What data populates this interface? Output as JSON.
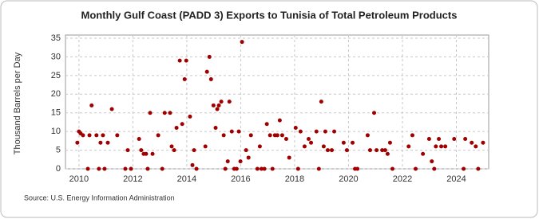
{
  "chart_data": {
    "type": "scatter",
    "title": "Monthly Gulf Coast (PADD 3) Exports to Tunisia of Total Petroleum Products",
    "y_label": "Thousand Barrels per Day",
    "source": "Source: U.S. Energy Information Administration",
    "color": "#a00000",
    "grid": true,
    "xlim": [
      2009.5,
      2025.2
    ],
    "xticks": [
      2010,
      2012,
      2014,
      2016,
      2018,
      2020,
      2022,
      2024
    ],
    "ylim": [
      0,
      35
    ],
    "yticks": [
      0,
      5,
      10,
      15,
      20,
      25,
      30,
      35
    ],
    "x": [
      2009.94,
      2010.0,
      2010.06,
      2010.15,
      2010.33,
      2010.39,
      2010.47,
      2010.65,
      2010.74,
      2010.8,
      2010.89,
      2010.95,
      2011.07,
      2011.22,
      2011.42,
      2011.72,
      2011.81,
      2011.93,
      2012.23,
      2012.31,
      2012.4,
      2012.49,
      2012.55,
      2012.64,
      2012.73,
      2012.94,
      2013.09,
      2013.18,
      2013.38,
      2013.44,
      2013.53,
      2013.62,
      2013.74,
      2013.83,
      2013.92,
      2013.98,
      2014.12,
      2014.21,
      2014.27,
      2014.36,
      2014.69,
      2014.75,
      2014.84,
      2014.9,
      2014.99,
      2015.07,
      2015.13,
      2015.19,
      2015.28,
      2015.37,
      2015.43,
      2015.52,
      2015.58,
      2015.67,
      2015.76,
      2015.85,
      2015.93,
      2015.99,
      2016.05,
      2016.2,
      2016.29,
      2016.38,
      2016.62,
      2016.71,
      2016.77,
      2016.88,
      2016.97,
      2017.09,
      2017.18,
      2017.27,
      2017.36,
      2017.45,
      2017.54,
      2017.69,
      2017.8,
      2018.04,
      2018.13,
      2018.22,
      2018.37,
      2018.52,
      2018.61,
      2018.81,
      2018.9,
      2018.99,
      2019.08,
      2019.14,
      2019.23,
      2019.38,
      2019.47,
      2019.82,
      2019.94,
      2020.15,
      2020.24,
      2020.33,
      2020.71,
      2020.8,
      2020.95,
      2021.04,
      2021.25,
      2021.36,
      2021.45,
      2021.54,
      2021.63,
      2022.23,
      2022.37,
      2022.49,
      2022.76,
      2022.99,
      2023.09,
      2023.18,
      2023.24,
      2023.35,
      2023.44,
      2023.59,
      2023.92,
      2024.27,
      2024.33,
      2024.57,
      2024.72,
      2024.81,
      2024.99
    ],
    "values": [
      7,
      10,
      9.5,
      9,
      0,
      9,
      17,
      9,
      0,
      7,
      9,
      0,
      7,
      16,
      9,
      0,
      5,
      0,
      8,
      5,
      4,
      4,
      0,
      15,
      4,
      9,
      0,
      15,
      15,
      6,
      5,
      11,
      29,
      12,
      24,
      29,
      14,
      1,
      5,
      0,
      6,
      26,
      30,
      24,
      17,
      11,
      16,
      17,
      18,
      9,
      0,
      2,
      18,
      10,
      0,
      0,
      10,
      2,
      34,
      5,
      3,
      9,
      0,
      6,
      0,
      0,
      12,
      9,
      0,
      9,
      9,
      13,
      9,
      8,
      3,
      11,
      0,
      10,
      6,
      8,
      7,
      10,
      0,
      18,
      6,
      10,
      5,
      5,
      10,
      7,
      5,
      7,
      0,
      0,
      9,
      5,
      15,
      5,
      5,
      5,
      4,
      7,
      0,
      6,
      9,
      0,
      4,
      8,
      2,
      0,
      6,
      8,
      6,
      6,
      8,
      0,
      8,
      7,
      6,
      0,
      7
    ]
  }
}
